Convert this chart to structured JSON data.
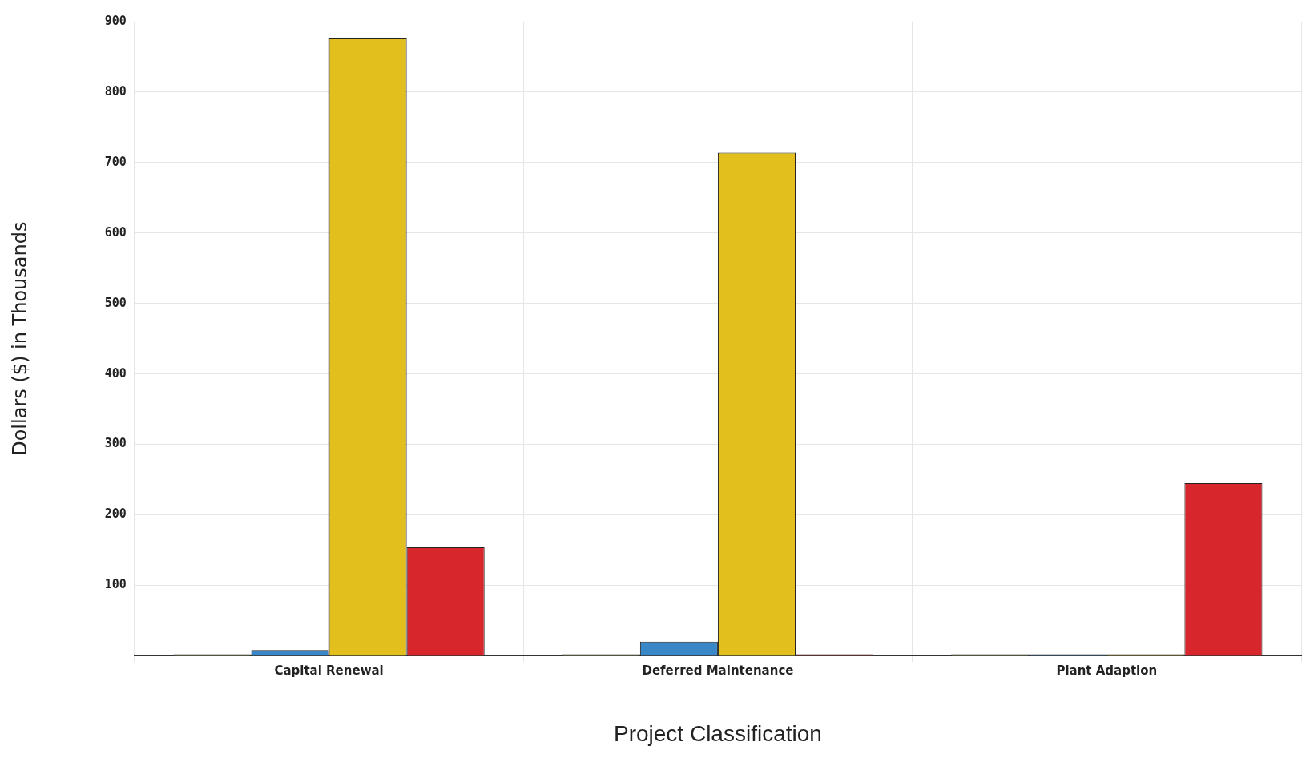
{
  "chart_data": {
    "type": "bar",
    "xlabel": "Project Classification",
    "ylabel": "Dollars ($) in Thousands",
    "categories": [
      "Capital Renewal",
      "Deferred Maintenance",
      "Plant Adaption"
    ],
    "series": [
      {
        "color": "#9bbb59",
        "values": [
          0,
          0,
          0
        ]
      },
      {
        "color": "#3a87c8",
        "values": [
          8,
          20,
          0
        ]
      },
      {
        "color": "#e2bf1c",
        "values": [
          876,
          714,
          0
        ]
      },
      {
        "color": "#d7262c",
        "values": [
          154,
          0,
          245
        ]
      }
    ],
    "ylim": [
      0,
      900
    ],
    "yticks": [
      100,
      200,
      300,
      400,
      500,
      600,
      700,
      800,
      900
    ],
    "grid": true,
    "legend": false
  }
}
